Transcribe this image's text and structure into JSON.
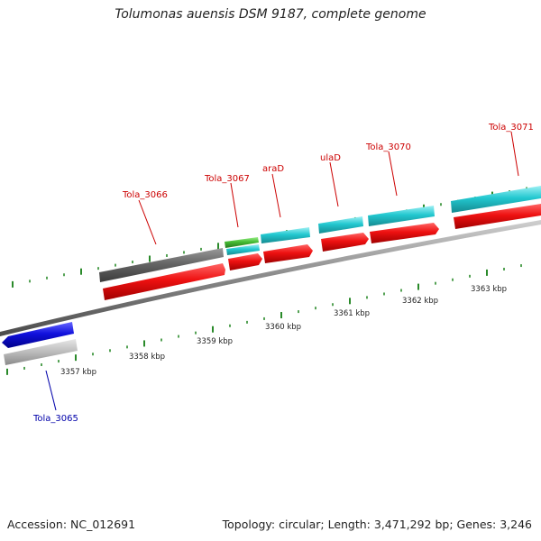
{
  "title": "Tolumonas auensis DSM 9187, complete genome",
  "footer": {
    "accession": "Accession: NC_012691",
    "summary": "Topology: circular; Length: 3,471,292 bp; Genes: 3,246"
  },
  "axis": {
    "labels": [
      "3357 kbp",
      "3358 kbp",
      "3359 kbp",
      "3360 kbp",
      "3361 kbp",
      "3362 kbp",
      "3363 kbp"
    ]
  },
  "genes": [
    {
      "name": "Tola_3065",
      "strand": "reverse",
      "color": "#0000cc"
    },
    {
      "name": "Tola_3066",
      "strand": "forward",
      "color": "#cc0000"
    },
    {
      "name": "Tola_3067",
      "strand": "forward",
      "color": "#cc0000"
    },
    {
      "name": "araD",
      "strand": "forward",
      "color": "#cc0000"
    },
    {
      "name": "ulaD",
      "strand": "forward",
      "color": "#cc0000"
    },
    {
      "name": "Tola_3070",
      "strand": "forward",
      "color": "#cc0000"
    },
    {
      "name": "Tola_3071",
      "strand": "forward",
      "color": "#cc0000"
    }
  ],
  "colors": {
    "backbone": "#888888",
    "forward_cds": "#ee1111",
    "reverse_cds": "#1111dd",
    "feature_cyan": "#22c8d0",
    "feature_gray": "#666666",
    "feature_lightgray": "#bbbbbb",
    "feature_green": "#44bb33",
    "tick": "#2a8a2a",
    "label_red": "#cc0000",
    "label_blue": "#0000aa"
  }
}
